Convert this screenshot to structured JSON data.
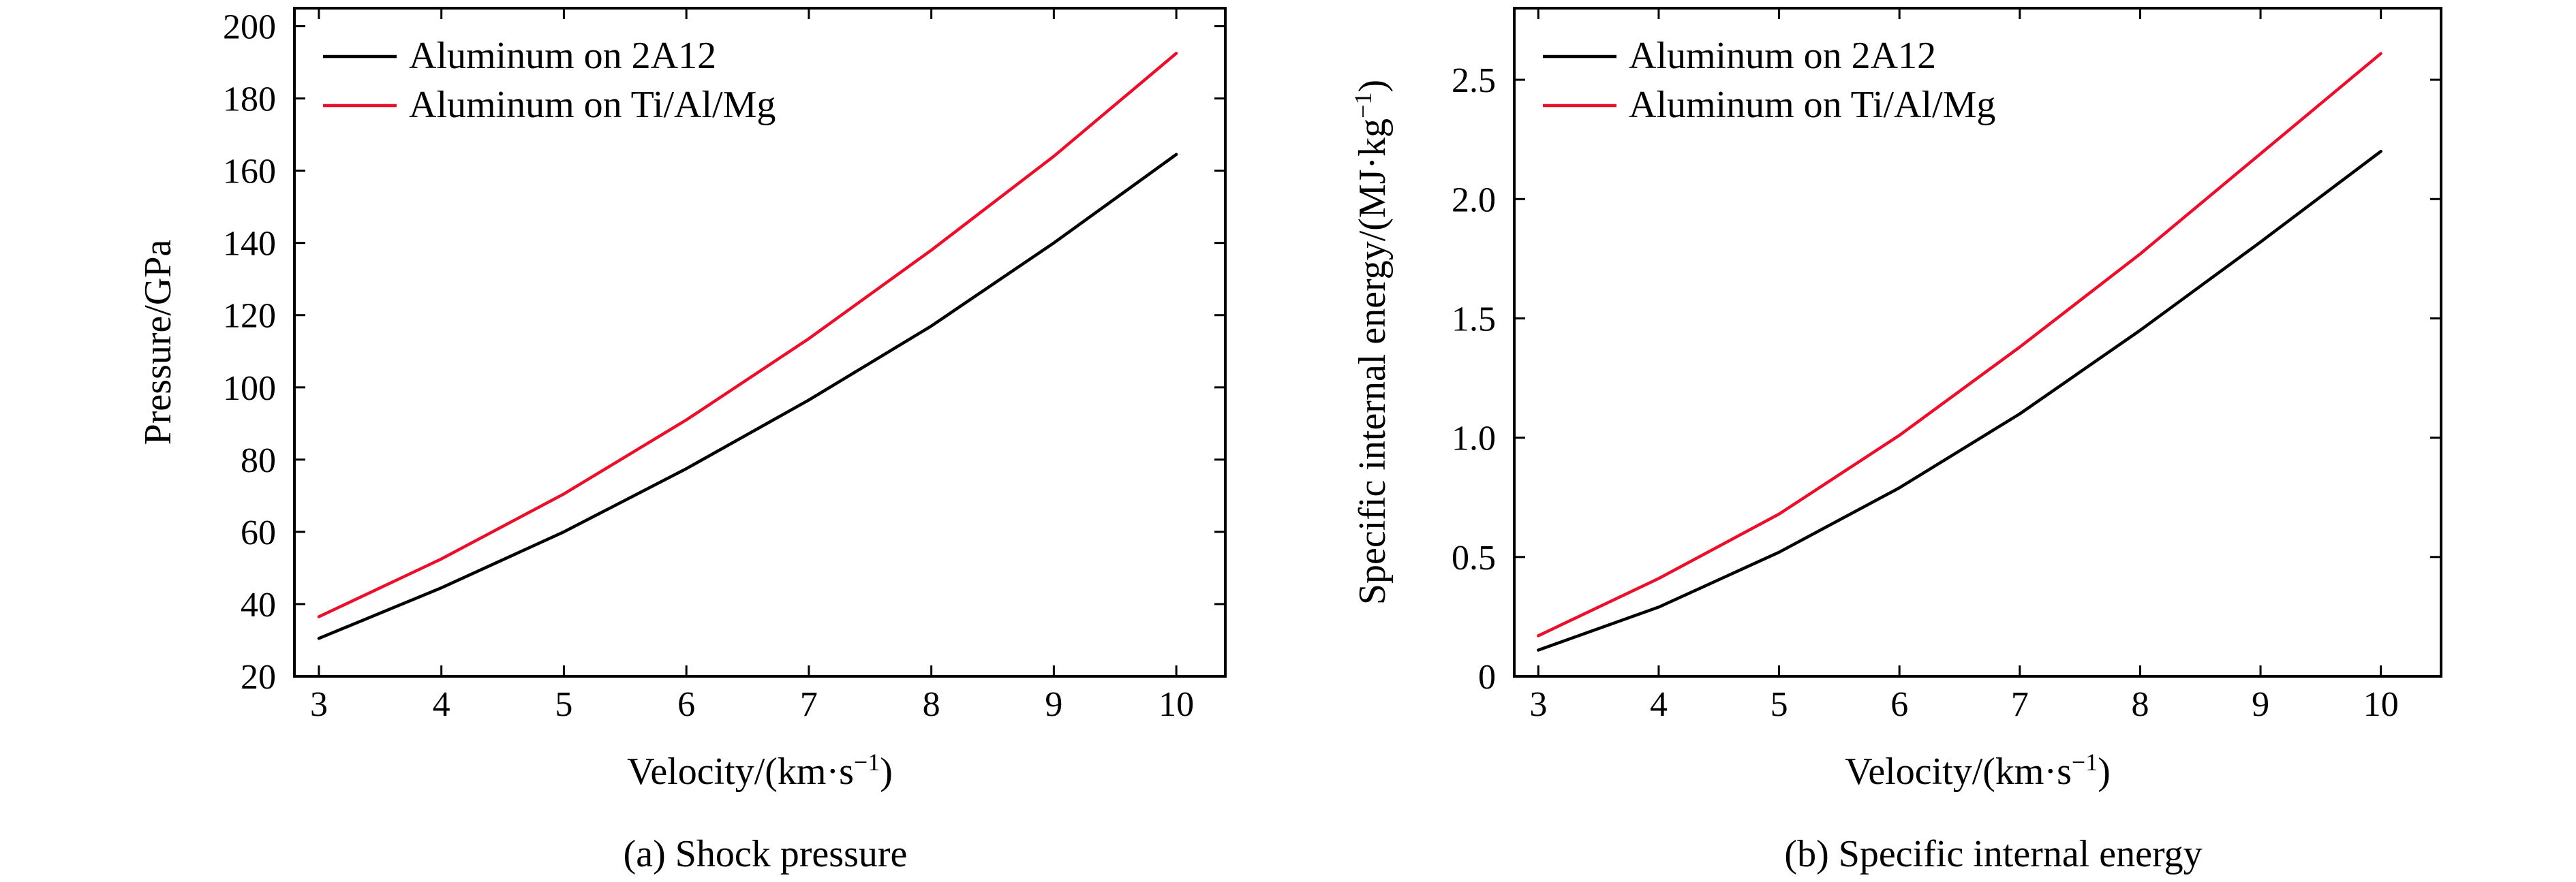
{
  "colors": {
    "series_black": "#000000",
    "series_red": "#e8112d",
    "axis": "#000000"
  },
  "chart_data": [
    {
      "type": "line",
      "title": "",
      "caption": "(a) Shock pressure",
      "xlabel": "Velocity/(km·s",
      "xlabel_sup": "−1",
      "xlabel_tail": ")",
      "ylabel": "Pressure/GPa",
      "xlim": [
        2.8,
        10.4
      ],
      "ylim": [
        20,
        205
      ],
      "xticks": [
        3,
        4,
        5,
        6,
        7,
        8,
        9,
        10
      ],
      "xtick_labels": [
        "3",
        "4",
        "5",
        "6",
        "7",
        "8",
        "9",
        "10"
      ],
      "yticks": [
        20,
        40,
        60,
        80,
        100,
        120,
        140,
        160,
        180,
        200
      ],
      "ytick_labels": [
        "20",
        "40",
        "60",
        "80",
        "100",
        "120",
        "140",
        "160",
        "180",
        "200"
      ],
      "grid": false,
      "legend_position": "top-left",
      "x": [
        3,
        4,
        5,
        6,
        7,
        8,
        9,
        10
      ],
      "series": [
        {
          "name": "Aluminum on 2A12",
          "color": "#000000",
          "values": [
            30.5,
            44.5,
            60,
            77.5,
            96.5,
            117,
            140,
            164.5
          ]
        },
        {
          "name": "Aluminum on Ti/Al/Mg",
          "color": "#e8112d",
          "values": [
            36.5,
            52.5,
            70.5,
            91,
            113.5,
            138,
            164,
            192.5
          ]
        }
      ]
    },
    {
      "type": "line",
      "title": "",
      "caption": "(b) Specific internal energy",
      "xlabel": "Velocity/(km·s",
      "xlabel_sup": "−1",
      "xlabel_tail": ")",
      "ylabel": "Specific internal energy/(MJ·kg",
      "ylabel_sup": "−1",
      "ylabel_tail": ")",
      "xlim": [
        2.8,
        10.5
      ],
      "ylim": [
        0,
        2.8
      ],
      "xticks": [
        3,
        4,
        5,
        6,
        7,
        8,
        9,
        10
      ],
      "xtick_labels": [
        "3",
        "4",
        "5",
        "6",
        "7",
        "8",
        "9",
        "10"
      ],
      "yticks": [
        0,
        0.5,
        1.0,
        1.5,
        2.0,
        2.5
      ],
      "ytick_labels": [
        "0",
        "0.5",
        "1.0",
        "1.5",
        "2.0",
        "2.5"
      ],
      "grid": false,
      "legend_position": "top-left",
      "x": [
        3,
        4,
        5,
        6,
        7,
        8,
        9,
        10
      ],
      "series": [
        {
          "name": "Aluminum on 2A12",
          "color": "#000000",
          "values": [
            0.11,
            0.29,
            0.52,
            0.79,
            1.1,
            1.45,
            1.82,
            2.2
          ]
        },
        {
          "name": "Aluminum on Ti/Al/Mg",
          "color": "#e8112d",
          "values": [
            0.17,
            0.41,
            0.68,
            1.01,
            1.38,
            1.77,
            2.19,
            2.61
          ]
        }
      ]
    }
  ]
}
